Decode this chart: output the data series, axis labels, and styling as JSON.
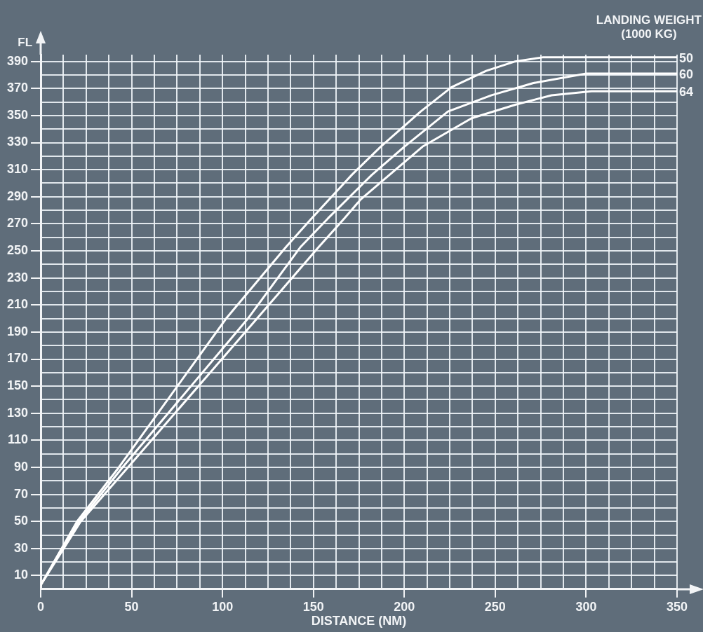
{
  "chart_data": {
    "type": "line",
    "xlabel": "DISTANCE (NM)",
    "ylabel": "FL",
    "legend_title": "LANDING WEIGHT (1000 KG)",
    "xlim": [
      0,
      350
    ],
    "ylim": [
      0,
      395
    ],
    "xticks": [
      0,
      {
        "value": 12.5,
        "label": null
      },
      {
        "value": 25,
        "label": null
      },
      {
        "value": 37.5,
        "label": null
      },
      50,
      {
        "value": 62.5,
        "label": null
      },
      {
        "value": 75,
        "label": null
      },
      {
        "value": 87.5,
        "label": null
      },
      100,
      {
        "value": 112.5,
        "label": null
      },
      {
        "value": 125,
        "label": null
      },
      {
        "value": 137.5,
        "label": null
      },
      150,
      {
        "value": 162.5,
        "label": null
      },
      {
        "value": 175,
        "label": null
      },
      {
        "value": 187.5,
        "label": null
      },
      200,
      {
        "value": 212.5,
        "label": null
      },
      {
        "value": 225,
        "label": null
      },
      {
        "value": 237.5,
        "label": null
      },
      250,
      {
        "value": 262.5,
        "label": null
      },
      {
        "value": 275,
        "label": null
      },
      {
        "value": 287.5,
        "label": null
      },
      300,
      {
        "value": 312.5,
        "label": null
      },
      {
        "value": 325,
        "label": null
      },
      {
        "value": 337.5,
        "label": null
      },
      350
    ],
    "yticks": [
      {
        "value": 0,
        "label": null
      },
      10,
      {
        "value": 20,
        "label": null
      },
      30,
      {
        "value": 40,
        "label": null
      },
      50,
      {
        "value": 60,
        "label": null
      },
      70,
      {
        "value": 80,
        "label": null
      },
      90,
      {
        "value": 100,
        "label": null
      },
      110,
      {
        "value": 120,
        "label": null
      },
      130,
      {
        "value": 140,
        "label": null
      },
      150,
      {
        "value": 160,
        "label": null
      },
      170,
      {
        "value": 180,
        "label": null
      },
      190,
      {
        "value": 200,
        "label": null
      },
      210,
      {
        "value": 220,
        "label": null
      },
      230,
      {
        "value": 240,
        "label": null
      },
      250,
      {
        "value": 260,
        "label": null
      },
      270,
      {
        "value": 280,
        "label": null
      },
      290,
      {
        "value": 300,
        "label": null
      },
      310,
      {
        "value": 320,
        "label": null
      },
      330,
      {
        "value": 340,
        "label": null
      },
      350,
      {
        "value": 360,
        "label": null
      },
      370,
      {
        "value": 380,
        "label": null
      },
      390
    ],
    "grid": true,
    "marker": "none",
    "line_style": "solid",
    "series": [
      {
        "name": "50",
        "color": "#ffffff",
        "x": [
          0,
          20,
          43,
          102,
          135,
          149,
          171,
          187,
          209,
          226,
          245,
          261,
          276,
          285,
          350
        ],
        "values": [
          3,
          50,
          90,
          200,
          253,
          274,
          306,
          327,
          353,
          371,
          383,
          390,
          393,
          393,
          393
        ]
      },
      {
        "name": "60",
        "color": "#ffffff",
        "x": [
          0,
          20,
          45,
          114,
          143,
          158,
          182,
          200,
          224,
          248,
          271,
          300,
          350
        ],
        "values": [
          3,
          48,
          90,
          200,
          253,
          274,
          306,
          327,
          353,
          365,
          374,
          381,
          381
        ]
      },
      {
        "name": "64",
        "color": "#ffffff",
        "x": [
          0,
          22,
          48,
          119,
          153,
          167,
          176,
          210,
          237,
          261,
          281,
          303,
          350
        ],
        "values": [
          3,
          50,
          90,
          200,
          253,
          274,
          288,
          327,
          348,
          358,
          365,
          368,
          368
        ]
      }
    ]
  }
}
